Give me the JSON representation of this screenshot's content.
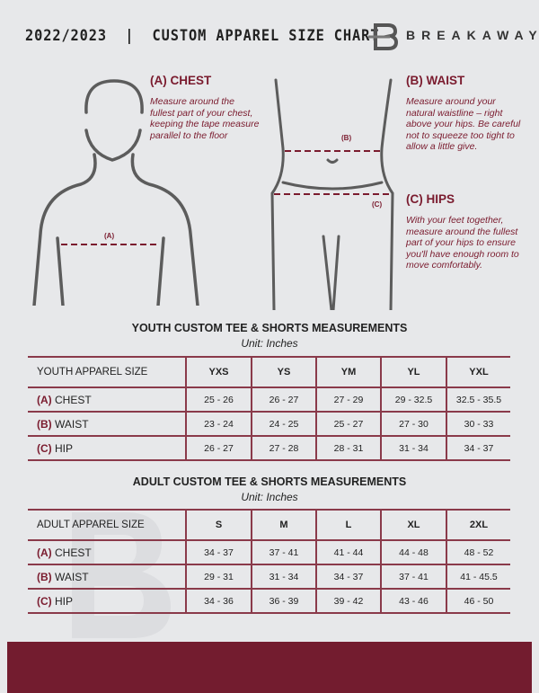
{
  "header": {
    "title": "2022/2023  |  CUSTOM APPAREL SIZE CHART",
    "brand": "BREAKAWAY",
    "logo_letter": "B"
  },
  "guide": {
    "chest": {
      "heading": "(A) CHEST",
      "label": "(A)",
      "text": "Measure around the fullest part of your chest, keeping the tape measure parallel to the floor"
    },
    "waist": {
      "heading": "(B) WAIST",
      "label": "(B)",
      "text": "Measure around your natural waistline – right above your hips. Be careful not to squeeze too tight to allow a little give."
    },
    "hips": {
      "heading": "(C) HIPS",
      "label": "(C)",
      "text": "With your feet together, measure around the fullest part of your hips to ensure you'll have enough room to move comfortably."
    }
  },
  "youth": {
    "title": "YOUTH CUSTOM TEE & SHORTS MEASUREMENTS",
    "unit": "Unit: Inches",
    "header": [
      "YOUTH APPAREL SIZE",
      "YXS",
      "YS",
      "YM",
      "YL",
      "YXL"
    ],
    "rows": [
      {
        "code": "(A)",
        "name": "CHEST",
        "values": [
          "25 - 26",
          "26 - 27",
          "27 - 29",
          "29 - 32.5",
          "32.5 - 35.5"
        ]
      },
      {
        "code": "(B)",
        "name": "WAIST",
        "values": [
          "23 - 24",
          "24 - 25",
          "25 - 27",
          "27 - 30",
          "30 - 33"
        ]
      },
      {
        "code": "(C)",
        "name": "HIP",
        "values": [
          "26 - 27",
          "27 - 28",
          "28 - 31",
          "31 - 34",
          "34 - 37"
        ]
      }
    ]
  },
  "adult": {
    "title": "ADULT CUSTOM TEE & SHORTS MEASUREMENTS",
    "unit": "Unit: Inches",
    "header": [
      "ADULT APPAREL SIZE",
      "S",
      "M",
      "L",
      "XL",
      "2XL"
    ],
    "rows": [
      {
        "code": "(A)",
        "name": "CHEST",
        "values": [
          "34 - 37",
          "37 - 41",
          "41 - 44",
          "44 - 48",
          "48 - 52"
        ]
      },
      {
        "code": "(B)",
        "name": "WAIST",
        "values": [
          "29 - 31",
          "31 - 34",
          "34 - 37",
          "37 - 41",
          "41 - 45.5"
        ]
      },
      {
        "code": "(C)",
        "name": "HIP",
        "values": [
          "34 - 36",
          "36 - 39",
          "39 - 42",
          "43 - 46",
          "46 - 50"
        ]
      }
    ]
  },
  "colors": {
    "accent": "#7a1b2e",
    "footer": "#731c2f",
    "background": "#e7e8ea"
  }
}
